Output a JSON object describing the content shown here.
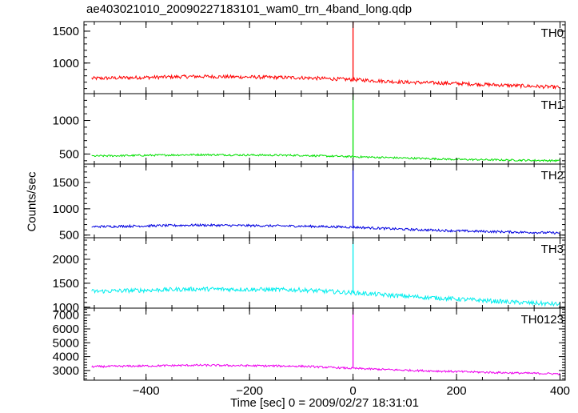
{
  "title": "ae403021010_20090227183101_wam0_trn_4band_long.qdp",
  "chart_data": {
    "type": "line",
    "title": "ae403021010_20090227183101_wam0_trn_4band_long.qdp",
    "xlabel": "Time [sec] 0 = 2009/02/27 18:31:01",
    "ylabel": "Counts/sec",
    "xlim": [
      -520,
      410
    ],
    "xticks": [
      -400,
      -200,
      0,
      200,
      400
    ],
    "xtick_labels": [
      "−400",
      "−200",
      "0",
      "200",
      "400"
    ],
    "grid": false,
    "panels": [
      {
        "name": "TH0",
        "color": "#ff0000",
        "ylim": [
          520,
          1650
        ],
        "yticks": [
          1000,
          1500
        ],
        "ytick_labels": [
          "1000",
          "1500"
        ],
        "trend_x": [
          -500,
          -300,
          -100,
          0,
          100,
          200,
          300,
          400
        ],
        "trend_y": [
          760,
          790,
          770,
          740,
          700,
          680,
          650,
          620
        ],
        "noise": 28,
        "spike": {
          "x": 0,
          "y": 1650
        }
      },
      {
        "name": "TH1",
        "color": "#00e000",
        "ylim": [
          350,
          1400
        ],
        "yticks": [
          500,
          1000
        ],
        "ytick_labels": [
          "500",
          "1000"
        ],
        "trend_x": [
          -500,
          -300,
          -100,
          0,
          100,
          200,
          300,
          400
        ],
        "trend_y": [
          470,
          490,
          480,
          460,
          440,
          420,
          410,
          400
        ],
        "noise": 14,
        "spike": {
          "x": 0,
          "y": 1400
        }
      },
      {
        "name": "TH2",
        "color": "#0000e0",
        "ylim": [
          450,
          1850
        ],
        "yticks": [
          500,
          1000,
          1500
        ],
        "ytick_labels": [
          "500",
          "1000",
          "1500"
        ],
        "trend_x": [
          -500,
          -300,
          -100,
          0,
          100,
          200,
          300,
          400
        ],
        "trend_y": [
          660,
          690,
          670,
          650,
          610,
          580,
          560,
          540
        ],
        "noise": 22,
        "spike": {
          "x": 0,
          "y": 1850
        }
      },
      {
        "name": "TH3",
        "color": "#00eeee",
        "ylim": [
          980,
          2450
        ],
        "yticks": [
          1000,
          1500,
          2000
        ],
        "ytick_labels": [
          "1000",
          "1500",
          "2000"
        ],
        "trend_x": [
          -500,
          -300,
          -100,
          0,
          100,
          200,
          300,
          400
        ],
        "trend_y": [
          1330,
          1380,
          1360,
          1300,
          1230,
          1170,
          1110,
          1060
        ],
        "noise": 45,
        "spike": {
          "x": 0,
          "y": 2450
        }
      },
      {
        "name": "TH0123",
        "color": "#ee00ee",
        "ylim": [
          2300,
          7500
        ],
        "yticks": [
          3000,
          4000,
          5000,
          6000,
          7000
        ],
        "ytick_labels": [
          "3000",
          "4000",
          "5000",
          "6000",
          "7000"
        ],
        "trend_x": [
          -500,
          -300,
          -100,
          0,
          100,
          200,
          300,
          400
        ],
        "trend_y": [
          3280,
          3380,
          3310,
          3150,
          3020,
          2920,
          2830,
          2760
        ],
        "noise": 70,
        "spike": {
          "x": 0,
          "y": 7500
        }
      }
    ]
  }
}
